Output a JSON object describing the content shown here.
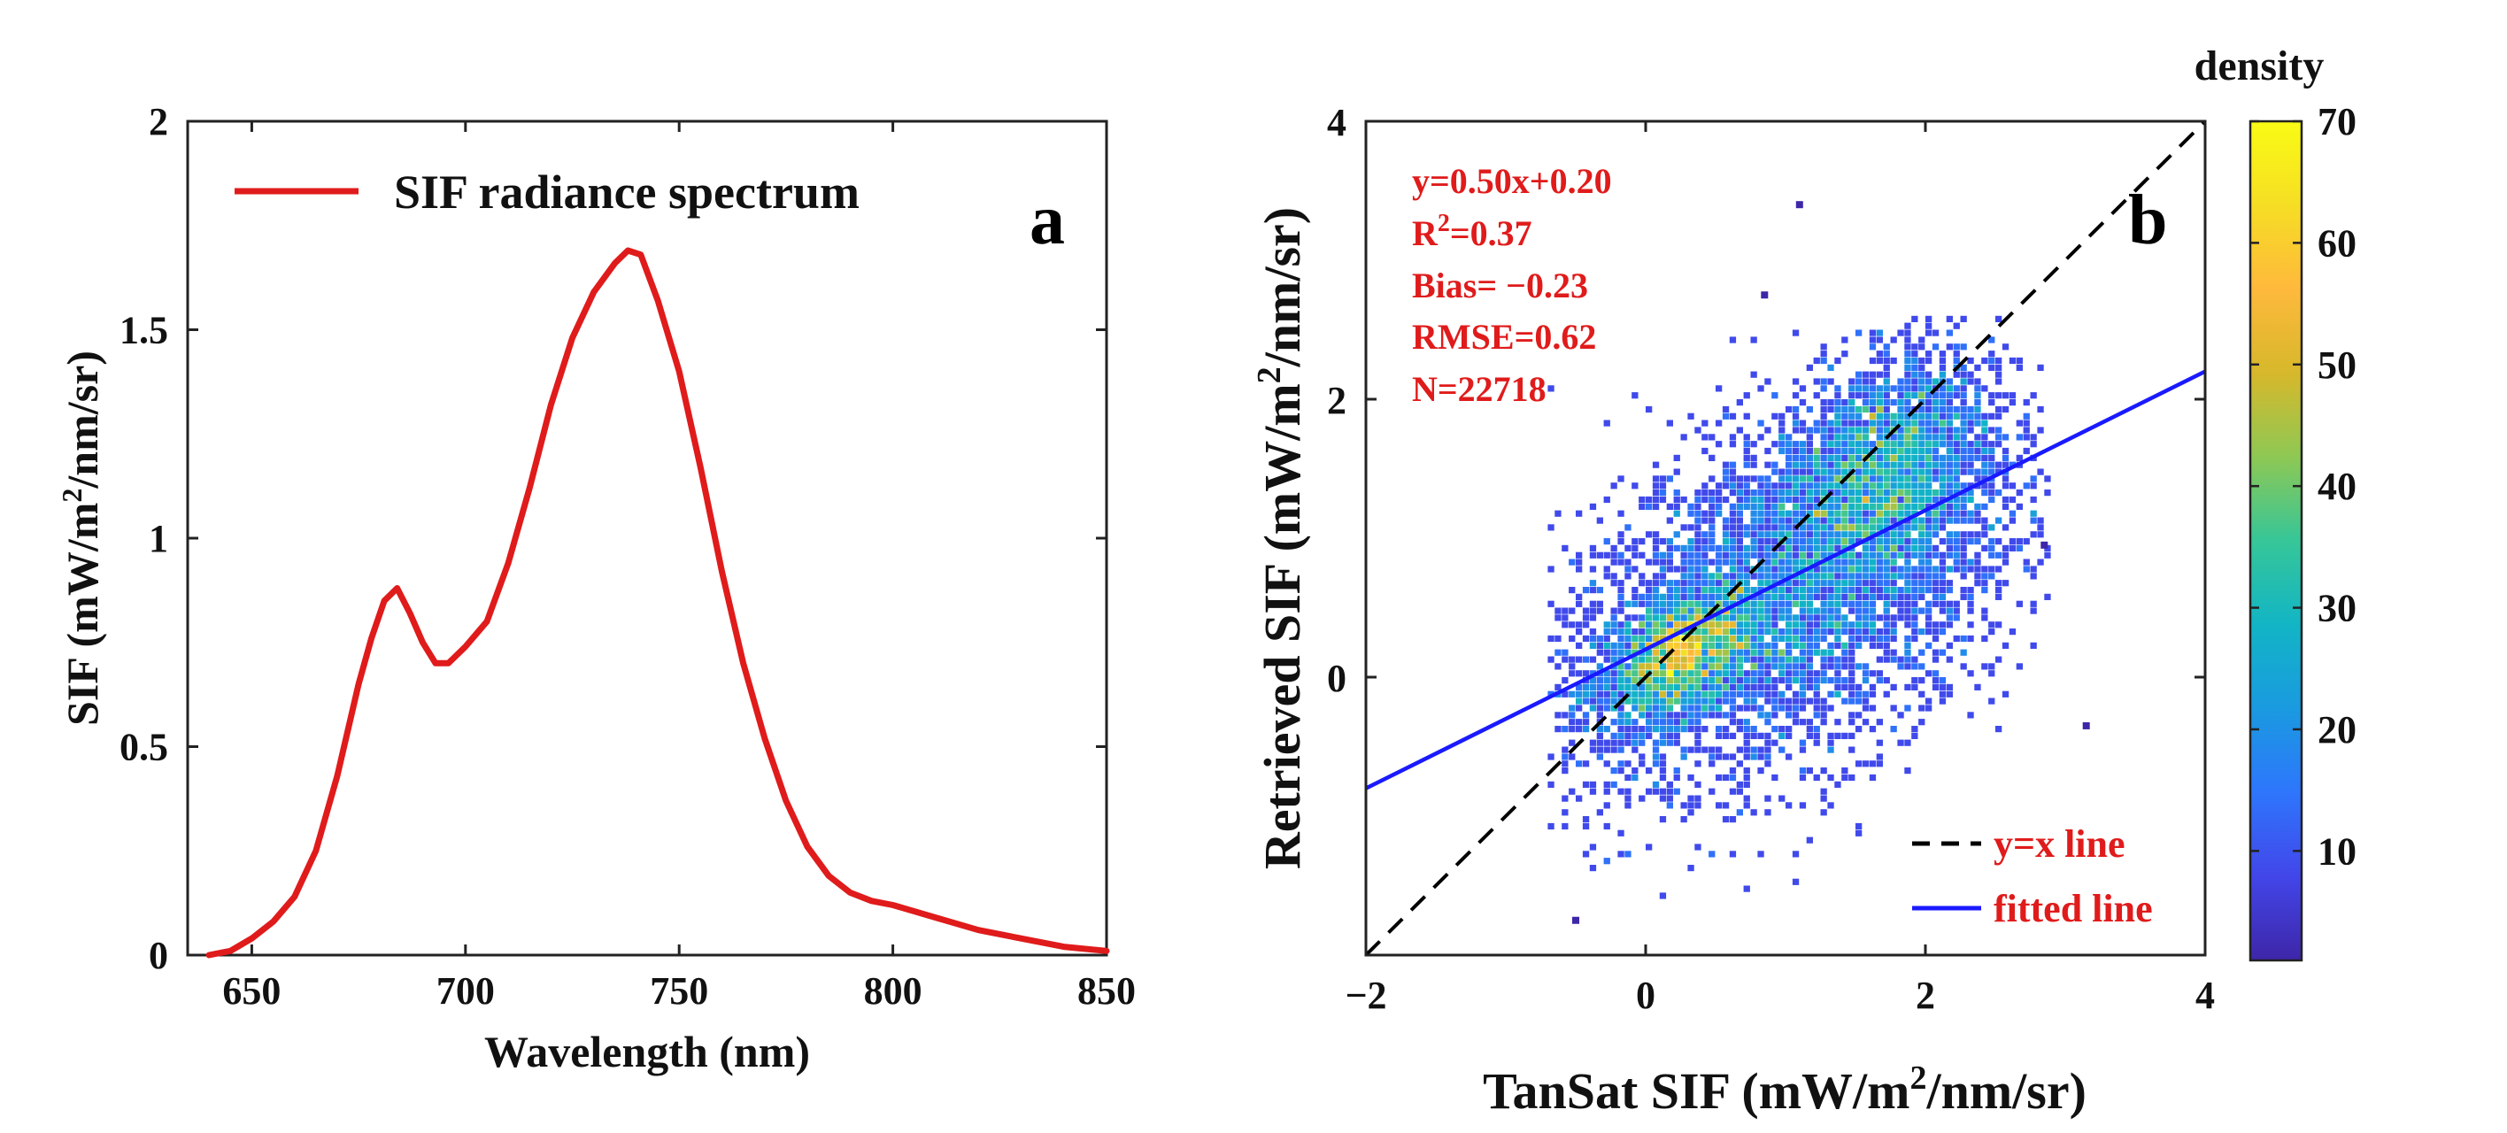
{
  "chart_data": [
    {
      "id": "a",
      "type": "line",
      "panel_label": "a",
      "title": "",
      "xlabel": "Wavelength (nm)",
      "ylabel_parts": [
        "SIF (mW/m",
        "2",
        "/nm/sr)"
      ],
      "xlim": [
        635,
        850
      ],
      "ylim": [
        0,
        2
      ],
      "xticks": [
        650,
        700,
        750,
        800,
        850
      ],
      "xtick_labels": [
        "650",
        "700",
        "750",
        "800",
        "850"
      ],
      "yticks": [
        0,
        0.5,
        1,
        1.5,
        2
      ],
      "ytick_labels": [
        "0",
        "0.5",
        "1",
        "1.5",
        "2"
      ],
      "legend": {
        "position": "top-left",
        "entries": [
          {
            "label": "SIF radiance spectrum",
            "color": "#e01b1b"
          }
        ]
      },
      "series": [
        {
          "name": "SIF radiance spectrum",
          "color": "#e01b1b",
          "x": [
            640,
            645,
            650,
            655,
            660,
            665,
            670,
            675,
            678,
            681,
            684,
            687,
            690,
            693,
            696,
            700,
            705,
            710,
            715,
            720,
            725,
            730,
            735,
            738,
            741,
            745,
            750,
            755,
            760,
            765,
            770,
            775,
            780,
            785,
            790,
            795,
            800,
            810,
            820,
            830,
            840,
            850
          ],
          "y": [
            0.0,
            0.01,
            0.04,
            0.08,
            0.14,
            0.25,
            0.43,
            0.65,
            0.76,
            0.85,
            0.88,
            0.82,
            0.75,
            0.7,
            0.7,
            0.74,
            0.8,
            0.94,
            1.12,
            1.32,
            1.48,
            1.59,
            1.66,
            1.69,
            1.68,
            1.57,
            1.4,
            1.17,
            0.92,
            0.7,
            0.52,
            0.37,
            0.26,
            0.19,
            0.15,
            0.13,
            0.12,
            0.09,
            0.06,
            0.04,
            0.02,
            0.01
          ]
        }
      ]
    },
    {
      "id": "b",
      "type": "scatter",
      "panel_label": "b",
      "xlabel_parts": [
        "TanSat SIF (mW/m",
        "2",
        "/nm/sr)"
      ],
      "ylabel_parts": [
        "Retrieved SIF (mW/m",
        "2",
        "/nm/sr)"
      ],
      "xlim": [
        -2,
        4
      ],
      "ylim": [
        -2,
        4
      ],
      "xticks": [
        -2,
        0,
        2,
        4
      ],
      "xtick_labels": [
        "−2",
        "0",
        "2",
        "4"
      ],
      "yticks": [
        0,
        2,
        4
      ],
      "ytick_labels": [
        "0",
        "2",
        "4"
      ],
      "stats": {
        "color": "#e01b1b",
        "equation": "y=0.50x+0.20",
        "r2_prefix": "R",
        "r2_sup": "2",
        "r2_value": "=0.37",
        "bias": "Bias= −0.23",
        "rmse": "RMSE=0.62",
        "n": "N=22718"
      },
      "lines": [
        {
          "name": "y=x line",
          "slope": 1.0,
          "intercept": 0.0,
          "style": "dashed",
          "color": "#000000"
        },
        {
          "name": "fitted line",
          "slope": 0.5,
          "intercept": 0.2,
          "style": "solid",
          "color": "#1a1aff"
        }
      ],
      "legend": {
        "position": "bottom-right",
        "text_color": "#e01b1b",
        "entries": [
          {
            "label": "y=x line",
            "style": "dashed",
            "color": "#000000"
          },
          {
            "label": "fitted line",
            "style": "solid",
            "color": "#1a1aff"
          }
        ]
      },
      "colorbar": {
        "title": "density",
        "min": 1,
        "max": 70,
        "ticks": [
          10,
          20,
          30,
          40,
          50,
          60,
          70
        ],
        "tick_labels": [
          "10",
          "20",
          "30",
          "40",
          "50",
          "60",
          "70"
        ],
        "colors": [
          "#3e26a8",
          "#4246e9",
          "#2e76fc",
          "#1a9ae0",
          "#12b5c5",
          "#36c698",
          "#8ec854",
          "#d7b82b",
          "#feb93c",
          "#f6de24",
          "#f9fb14"
        ]
      },
      "density_model": {
        "count": 22718,
        "clusters": [
          {
            "cx": 0.25,
            "cy": 0.15,
            "sx": 0.3,
            "sy": 0.22,
            "weight": 0.22
          },
          {
            "cx": 1.0,
            "cy": 0.55,
            "sx": 0.85,
            "sy": 0.6,
            "weight": 0.5
          },
          {
            "cx": 1.7,
            "cy": 1.5,
            "sx": 0.4,
            "sy": 0.4,
            "weight": 0.28
          }
        ],
        "outliers": [
          {
            "x": 1.1,
            "y": 3.4
          },
          {
            "x": 3.15,
            "y": -0.35
          },
          {
            "x": 2.85,
            "y": 0.95
          },
          {
            "x": -0.5,
            "y": -1.75
          },
          {
            "x": 0.85,
            "y": 2.75
          }
        ]
      }
    }
  ]
}
